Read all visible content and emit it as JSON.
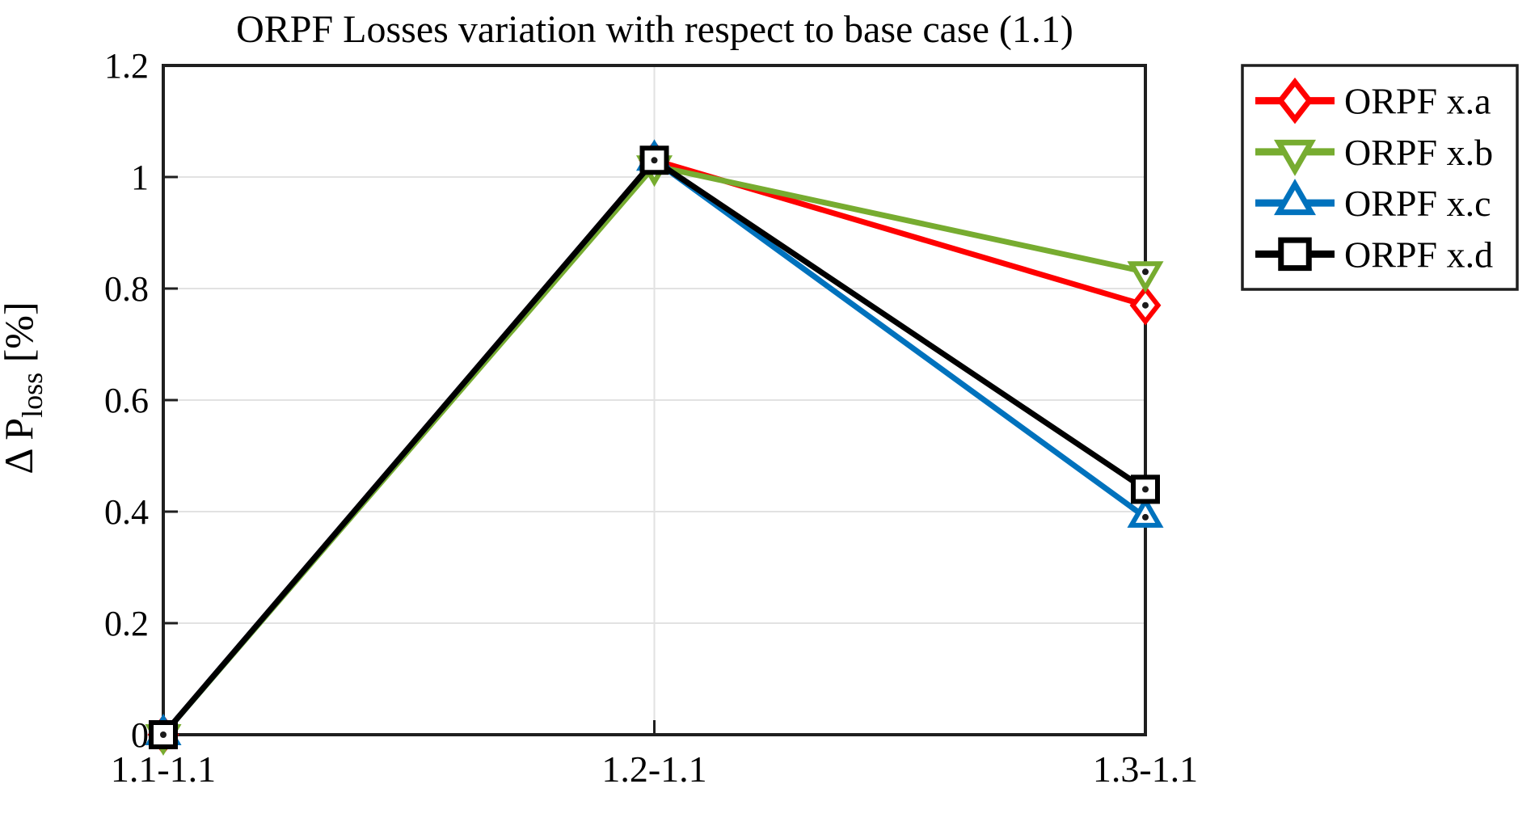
{
  "chart_data": {
    "type": "line",
    "title": "ORPF Losses variation with respect to base case (1.1)",
    "categories": [
      "1.1-1.1",
      "1.2-1.1",
      "1.3-1.1"
    ],
    "series": [
      {
        "name": "ORPF x.a",
        "color": "#ff0000",
        "marker": "diamond",
        "values": [
          0,
          1.03,
          0.77
        ]
      },
      {
        "name": "ORPF x.b",
        "color": "#77ac30",
        "marker": "triangle-down",
        "values": [
          0,
          1.02,
          0.83
        ]
      },
      {
        "name": "ORPF x.c",
        "color": "#0072bd",
        "marker": "triangle-up",
        "values": [
          0,
          1.03,
          0.39
        ]
      },
      {
        "name": "ORPF x.d",
        "color": "#000000",
        "marker": "square",
        "values": [
          0,
          1.03,
          0.44
        ]
      }
    ],
    "ylabel": {
      "prefix": "Δ P",
      "subscript": "loss",
      "suffix": " [%]"
    },
    "ytick_values": [
      0,
      0.2,
      0.4,
      0.6,
      0.8,
      1,
      1.2
    ],
    "ytick_labels": [
      "0",
      "0.2",
      "0.4",
      "0.6",
      "0.8",
      "1",
      "1.2"
    ],
    "ylim": [
      0,
      1.2
    ],
    "grid": true,
    "legend_position": "outside-top-right",
    "colors": {
      "axis": "#1f1f1f",
      "grid": "#e2e2e2",
      "background": "#ffffff",
      "text": "#000000"
    }
  }
}
